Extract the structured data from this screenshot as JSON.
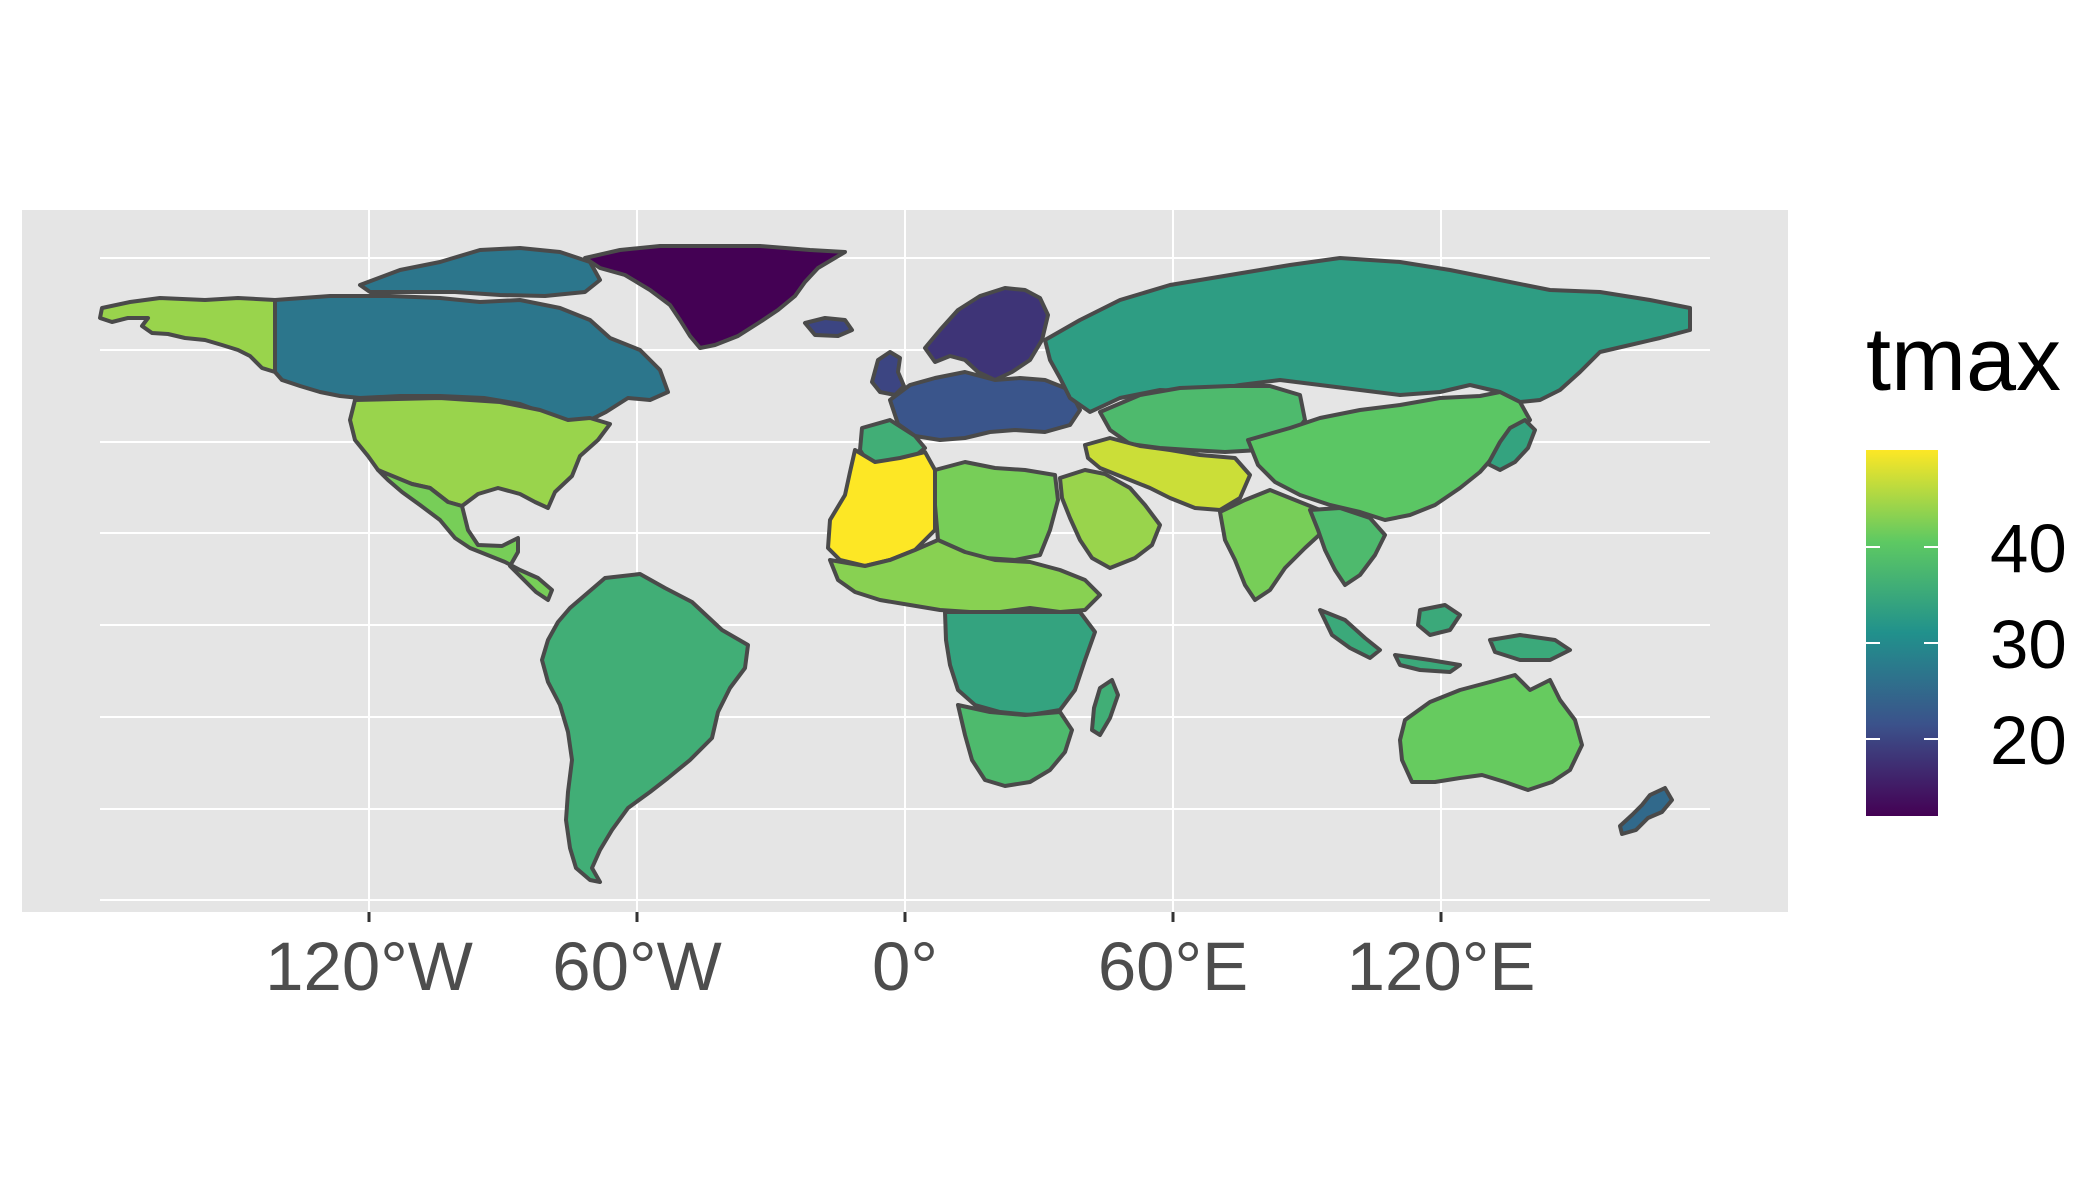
{
  "map": {
    "type": "choropleth",
    "fill_variable": "tmax",
    "palette": "viridis",
    "x_axis": {
      "ticks": [
        {
          "lon": -120,
          "label": "120°W"
        },
        {
          "lon": -60,
          "label": "60°W"
        },
        {
          "lon": 0,
          "label": "0°"
        },
        {
          "lon": 60,
          "label": "60°E"
        },
        {
          "lon": 120,
          "label": "120°E"
        }
      ]
    },
    "lon_range": [
      -180,
      180
    ],
    "lat_range": [
      -60,
      84
    ],
    "y_gridlines_lat": [
      -80,
      -60,
      -40,
      -20,
      0,
      20,
      40,
      60,
      80
    ],
    "background_color": "#e5e5e5",
    "grid_color": "#ffffff",
    "border_color": "#4a4a4a"
  },
  "legend": {
    "title": "tmax",
    "position": "right",
    "range": [
      12,
      50
    ],
    "breaks": [
      {
        "value": 40,
        "label": "40"
      },
      {
        "value": 30,
        "label": "30"
      },
      {
        "value": 20,
        "label": "20"
      }
    ],
    "colors": [
      "#440154",
      "#3b528b",
      "#21918c",
      "#5ec962",
      "#fde725"
    ]
  },
  "regions": [
    {
      "name": "Greenland",
      "tmax": 12
    },
    {
      "name": "Scandinavia",
      "tmax": 18
    },
    {
      "name": "UK & Ireland",
      "tmax": 20
    },
    {
      "name": "Central Europe",
      "tmax": 22
    },
    {
      "name": "Iceland",
      "tmax": 20
    },
    {
      "name": "Canada",
      "tmax": 27
    },
    {
      "name": "Alaska",
      "tmax": 44
    },
    {
      "name": "USA",
      "tmax": 44
    },
    {
      "name": "Mexico & Central America",
      "tmax": 42
    },
    {
      "name": "South America",
      "tmax": 36
    },
    {
      "name": "Russia",
      "tmax": 33
    },
    {
      "name": "Central Asia",
      "tmax": 38
    },
    {
      "name": "China",
      "tmax": 40
    },
    {
      "name": "Middle East",
      "tmax": 47
    },
    {
      "name": "Arabia",
      "tmax": 44
    },
    {
      "name": "India",
      "tmax": 42
    },
    {
      "name": "Southeast Asia",
      "tmax": 38
    },
    {
      "name": "Indonesia",
      "tmax": 35
    },
    {
      "name": "Sahara (Algeria, Mali, Mauritania)",
      "tmax": 50
    },
    {
      "name": "North Africa",
      "tmax": 42
    },
    {
      "name": "Sahel",
      "tmax": 43
    },
    {
      "name": "Central Africa",
      "tmax": 34
    },
    {
      "name": "Southern Africa",
      "tmax": 38
    },
    {
      "name": "Madagascar",
      "tmax": 36
    },
    {
      "name": "Australia",
      "tmax": 41
    },
    {
      "name": "New Zealand",
      "tmax": 25
    },
    {
      "name": "Japan",
      "tmax": 34
    },
    {
      "name": "Iberia",
      "tmax": 36
    }
  ]
}
